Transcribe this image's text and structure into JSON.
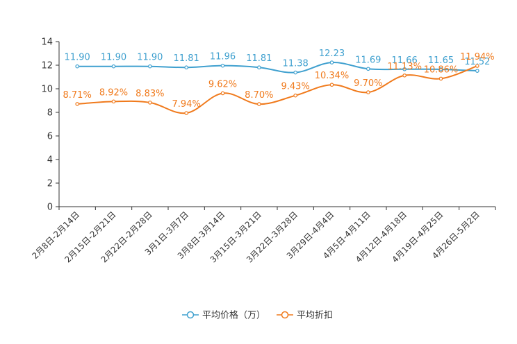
{
  "chart_data": {
    "type": "line",
    "title": "",
    "xlabel": "",
    "ylabel": "",
    "ylim": [
      0,
      14
    ],
    "yticks": [
      0,
      2,
      4,
      6,
      8,
      10,
      12,
      14
    ],
    "grid": false,
    "legend_position": "bottom-center",
    "categories": [
      "2月8日-2月14日",
      "2月15日-2月21日",
      "2月22日-2月28日",
      "3月1日-3月7日",
      "3月8日-3月14日",
      "3月15日-3月21日",
      "3月22日-3月28日",
      "3月29日-4月4日",
      "4月5日-4月11日",
      "4月12日-4月18日",
      "4月19日-4月25日",
      "4月26日-5月2日"
    ],
    "series": [
      {
        "name": "平均价格（万）",
        "color": "#3fa0cf",
        "values": [
          11.9,
          11.9,
          11.9,
          11.81,
          11.96,
          11.81,
          11.38,
          12.23,
          11.69,
          11.66,
          11.65,
          11.52
        ],
        "labels": [
          "11.90",
          "11.90",
          "11.90",
          "11.81",
          "11.96",
          "11.81",
          "11.38",
          "12.23",
          "11.69",
          "11.66",
          "11.65",
          "11.52"
        ]
      },
      {
        "name": "平均折扣",
        "color": "#f07a1c",
        "values": [
          8.71,
          8.92,
          8.83,
          7.94,
          9.62,
          8.7,
          9.43,
          10.34,
          9.7,
          11.13,
          10.86,
          11.94
        ],
        "labels": [
          "8.71%",
          "8.92%",
          "8.83%",
          "7.94%",
          "9.62%",
          "8.70%",
          "9.43%",
          "10.34%",
          "9.70%",
          "11.13%",
          "10.86%",
          "11.94%"
        ]
      }
    ]
  }
}
